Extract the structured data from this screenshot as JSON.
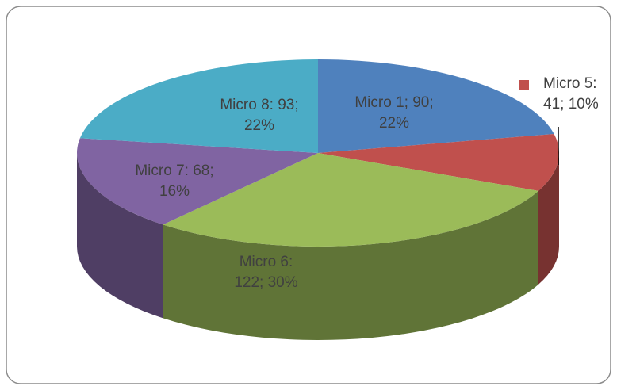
{
  "chart_data": {
    "type": "pie",
    "categories": [
      "Micro 1",
      "Micro 5",
      "Micro 6",
      "Micro 7",
      "Micro 8"
    ],
    "values": [
      90,
      41,
      122,
      68,
      93
    ],
    "value_labels": [
      "Micro 1; 90; 22%",
      "Micro 5: 41; 10%",
      "Micro 6: 122; 30%",
      "Micro 7: 68; 16%",
      "Micro 8: 93; 22%"
    ],
    "colors": [
      "#4f81bd",
      "#c0504d",
      "#9bbb59",
      "#8064a2",
      "#4bacc6"
    ],
    "three_d": true
  }
}
